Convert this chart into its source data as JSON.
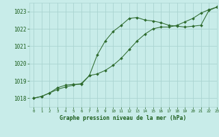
{
  "x": [
    0,
    1,
    2,
    3,
    4,
    5,
    6,
    7,
    8,
    9,
    10,
    11,
    12,
    13,
    14,
    15,
    16,
    17,
    18,
    19,
    20,
    21,
    22,
    23
  ],
  "line1": [
    1018.0,
    1018.1,
    1018.3,
    1018.5,
    1018.65,
    1018.75,
    1018.85,
    1019.3,
    1019.4,
    1019.6,
    1019.9,
    1020.3,
    1020.8,
    1021.3,
    1021.7,
    1022.0,
    1022.1,
    1022.1,
    1022.2,
    1022.4,
    1022.6,
    1022.9,
    1023.1,
    1023.25
  ],
  "line2": [
    1018.0,
    1018.1,
    1018.3,
    1018.6,
    1018.75,
    1018.8,
    1018.8,
    1019.3,
    1020.5,
    1021.3,
    1021.85,
    1022.2,
    1022.6,
    1022.65,
    1022.5,
    1022.45,
    1022.35,
    1022.2,
    1022.15,
    1022.1,
    1022.15,
    1022.2,
    1023.05,
    1023.25
  ],
  "background_color": "#c8ece9",
  "grid_color": "#aad4d0",
  "line_color": "#2d6a2d",
  "text_color": "#1a5c1a",
  "xlabel": "Graphe pression niveau de la mer (hPa)",
  "ylim_min": 1017.5,
  "ylim_max": 1023.5,
  "xlim_min": -0.5,
  "xlim_max": 23,
  "yticks": [
    1018,
    1019,
    1020,
    1021,
    1022,
    1023
  ],
  "xticks": [
    0,
    1,
    2,
    3,
    4,
    5,
    6,
    7,
    8,
    9,
    10,
    11,
    12,
    13,
    14,
    15,
    16,
    17,
    18,
    19,
    20,
    21,
    22,
    23
  ],
  "figwidth": 3.2,
  "figheight": 2.0,
  "dpi": 100
}
